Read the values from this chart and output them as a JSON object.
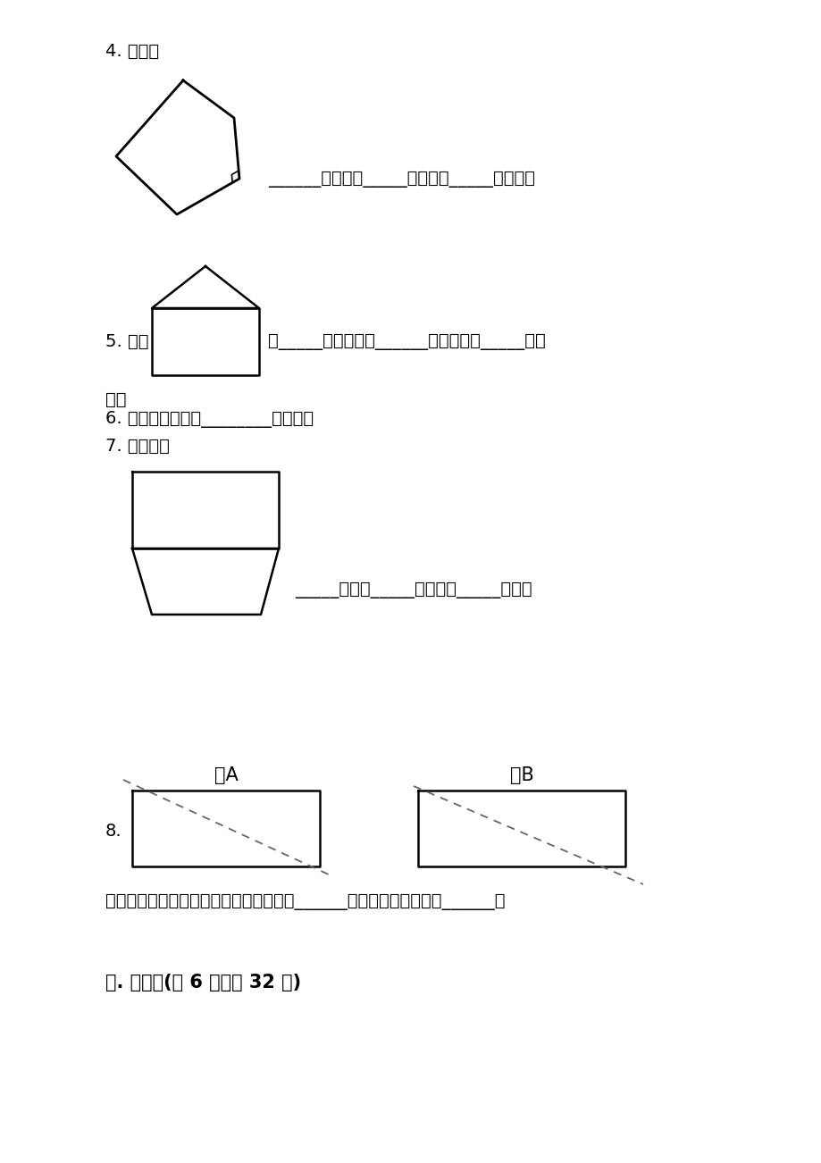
{
  "bg_color": "#ffffff",
  "text_color": "#000000",
  "line_color": "#000000",
  "page_width": 9.2,
  "page_height": 13.02,
  "q4_label": "4. 填空。",
  "q4_answer_text": "______个锐角，_____个直角，_____个钝角。",
  "q5_label": "5. 图中",
  "q5_answer_text": "有_____个直角，有______个锐角，有_____个钝",
  "q5_answer_text2": "角。",
  "q6_label": "6. 两个长方形里有________个直角。",
  "q7_label": "7. 数一数。",
  "q7_answer_text": "_____锐角，_____个直角，_____钝角。",
  "q8_label": "8.",
  "q8_figA_label": "图A",
  "q8_figB_label": "图B",
  "q8_answer_text": "把长方形沿虚线剪开。剩下一个直角的是______，剩下三个直角的是______。",
  "section4_label": "四. 解答题(共 6 题，共 32 分)"
}
